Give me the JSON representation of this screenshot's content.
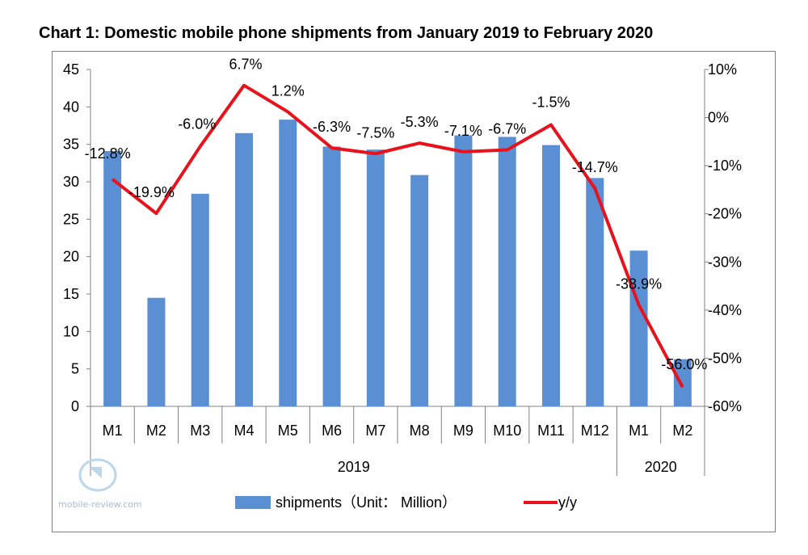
{
  "page": {
    "watermark_text": "mobile-review.com"
  },
  "colors": {
    "bar": "#5b8fd4",
    "line": "#e8121c",
    "axis": "#808080",
    "text": "#000000"
  },
  "chart_data": {
    "type": "bar",
    "title": "Chart 1: Domestic mobile phone shipments from January 2019 to February 2020",
    "categories": [
      "M1",
      "M2",
      "M3",
      "M4",
      "M5",
      "M6",
      "M7",
      "M8",
      "M9",
      "M10",
      "M11",
      "M12",
      "M1",
      "M2"
    ],
    "groups": [
      {
        "label": "2019",
        "count": 12
      },
      {
        "label": "2020",
        "count": 2
      }
    ],
    "series": [
      {
        "name": "shipments（Unit： Million）",
        "type": "bar",
        "axis": "left",
        "values": [
          34.1,
          14.5,
          28.4,
          36.5,
          38.3,
          34.7,
          34.3,
          30.9,
          36.2,
          36.0,
          34.9,
          30.5,
          20.8,
          6.3
        ]
      },
      {
        "name": "y/y",
        "type": "line",
        "axis": "right",
        "values": [
          -12.8,
          -19.9,
          -6.0,
          6.7,
          1.2,
          -6.3,
          -7.5,
          -5.3,
          -7.1,
          -6.7,
          -1.5,
          -14.7,
          -38.9,
          -56.0
        ],
        "labels": [
          "-12.8%",
          "-19.9%",
          "-6.0%",
          "6.7%",
          "1.2%",
          "-6.3%",
          "-7.5%",
          "-5.3%",
          "-7.1%",
          "-6.7%",
          "-1.5%",
          "-14.7%",
          "-38.9%",
          "-56.0%"
        ]
      }
    ],
    "y_left": {
      "min": 0,
      "max": 45,
      "step": 5,
      "ticks": [
        "0",
        "5",
        "10",
        "15",
        "20",
        "25",
        "30",
        "35",
        "40",
        "45"
      ]
    },
    "y_right": {
      "min": -60,
      "max": 10,
      "step": 10,
      "ticks": [
        "-60%",
        "-50%",
        "-40%",
        "-30%",
        "-20%",
        "-10%",
        "0%",
        "10%"
      ]
    },
    "legend_position": "bottom",
    "grid": false
  }
}
